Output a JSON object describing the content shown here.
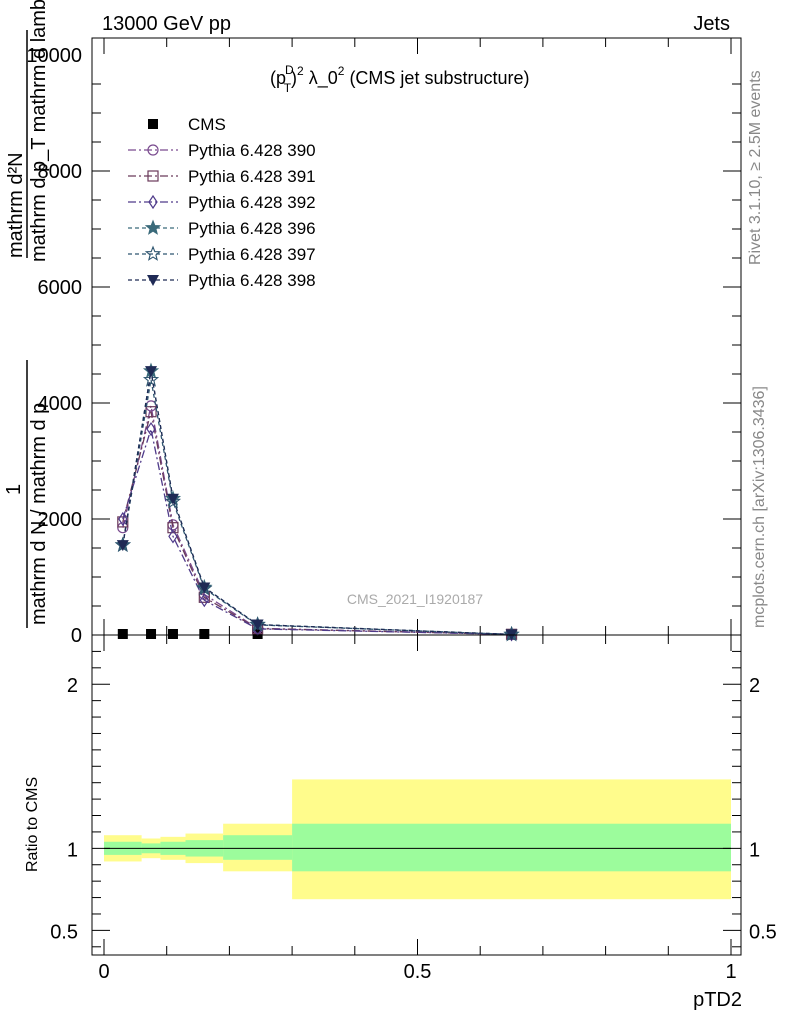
{
  "header": {
    "energy": "13000 GeV pp",
    "process": "Jets"
  },
  "side_labels": {
    "rivet": "Rivet 3.1.10, ≥ 2.5M events",
    "mcplots": "mcplots.cern.ch [arXiv:1306.3436]"
  },
  "watermark": "CMS_2021_I1920187",
  "ratio_ylabel": "Ratio to CMS",
  "chart_data": [
    {
      "type": "line",
      "title": "(p_T^D)^2 λ_0^2 (CMS jet substructure)",
      "title_parts": {
        "pre": "(p",
        "sup1": "D",
        "sub1": "T",
        "mid": ")",
        "sup2": "2",
        "lam": " λ_0",
        "sup3": "2",
        "post": " (CMS jet substructure)"
      },
      "ylabel": "mathrm d N / mathrm d p_T mathrm d lambda",
      "ylabel_numerator": "1",
      "ylabel_denominator_line": "mathrm d N / mathrm d p",
      "ylabel_frac_numerator": "mathrm d²N",
      "ylabel_frac_denominator": "mathrm d p_T mathrm d lambda",
      "xlim": [
        0,
        1
      ],
      "ylim": [
        0,
        10000
      ],
      "y_ticks": [
        0,
        2000,
        4000,
        6000,
        8000
      ],
      "y_tick_labels": [
        "0",
        "2000",
        "4000",
        "6000",
        "8000"
      ],
      "y_top_label": "10000",
      "grid": false,
      "legend_position": "top-left",
      "x": [
        0.03,
        0.075,
        0.11,
        0.16,
        0.245,
        0.65
      ],
      "series": [
        {
          "name": "CMS",
          "marker": "filled-square",
          "color": "#000000",
          "values": [
            0,
            0,
            0,
            0,
            0,
            0
          ]
        },
        {
          "name": "Pythia 6.428 390",
          "marker": "open-circle",
          "color": "#7a4b8f",
          "dash": "8,3,2,3",
          "values": [
            1850,
            3950,
            1900,
            700,
            115,
            12
          ]
        },
        {
          "name": "Pythia 6.428 391",
          "marker": "open-square",
          "color": "#6a3a5a",
          "dash": "8,3,2,3",
          "values": [
            1950,
            3850,
            1850,
            650,
            110,
            12
          ]
        },
        {
          "name": "Pythia 6.428 392",
          "marker": "open-diamond",
          "color": "#4f3a8a",
          "dash": "8,3,2,3",
          "values": [
            2000,
            3550,
            1700,
            600,
            105,
            11
          ]
        },
        {
          "name": "Pythia 6.428 396",
          "marker": "filled-star",
          "color": "#3a6a7a",
          "dash": "4,3",
          "values": [
            1550,
            4550,
            2350,
            820,
            180,
            10
          ]
        },
        {
          "name": "Pythia 6.428 397",
          "marker": "open-star",
          "color": "#2f5670",
          "dash": "4,3",
          "values": [
            1550,
            4400,
            2300,
            800,
            175,
            10
          ]
        },
        {
          "name": "Pythia 6.428 398",
          "marker": "filled-triangle-down",
          "color": "#1f2a55",
          "dash": "4,3",
          "values": [
            1550,
            4550,
            2350,
            820,
            180,
            10
          ]
        }
      ]
    },
    {
      "type": "area",
      "xlabel": "pTD2",
      "ylabel": "Ratio to CMS",
      "xlim": [
        0,
        1
      ],
      "ylim": [
        0.35,
        2.3
      ],
      "y_ticks": [
        0.5,
        1,
        2
      ],
      "y_tick_labels": [
        "0.5",
        "1",
        "2"
      ],
      "x_ticks": [
        0,
        0.5,
        1
      ],
      "x_tick_labels": [
        "0",
        "0.5",
        "1"
      ],
      "bins": [
        {
          "lo": 0.0,
          "hi": 0.06,
          "stat": [
            0.96,
            1.04
          ],
          "tot": [
            0.92,
            1.08
          ]
        },
        {
          "lo": 0.06,
          "hi": 0.09,
          "stat": [
            0.97,
            1.03
          ],
          "tot": [
            0.94,
            1.06
          ]
        },
        {
          "lo": 0.09,
          "hi": 0.13,
          "stat": [
            0.96,
            1.04
          ],
          "tot": [
            0.93,
            1.07
          ]
        },
        {
          "lo": 0.13,
          "hi": 0.19,
          "stat": [
            0.95,
            1.05
          ],
          "tot": [
            0.91,
            1.09
          ]
        },
        {
          "lo": 0.19,
          "hi": 0.3,
          "stat": [
            0.93,
            1.08
          ],
          "tot": [
            0.86,
            1.15
          ]
        },
        {
          "lo": 0.3,
          "hi": 1.0,
          "stat": [
            0.86,
            1.15
          ],
          "tot": [
            0.69,
            1.42
          ]
        }
      ],
      "stat_color": "#9cfc9c",
      "tot_color": "#fffc8c"
    }
  ]
}
